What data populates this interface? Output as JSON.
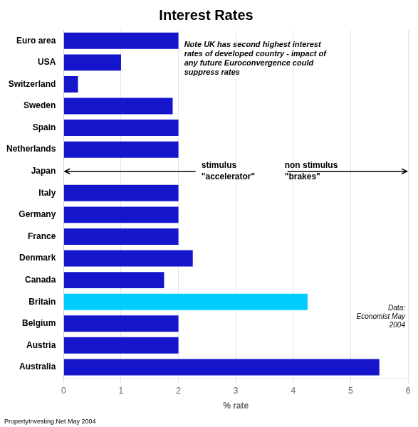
{
  "chart_data": {
    "type": "bar",
    "orientation": "horizontal",
    "title": "Interest Rates",
    "categories": [
      "Euro area",
      "USA",
      "Switzerland",
      "Sweden",
      "Spain",
      "Netherlands",
      "Japan",
      "Italy",
      "Germany",
      "France",
      "Denmark",
      "Canada",
      "Britain",
      "Belgium",
      "Austria",
      "Australia"
    ],
    "values": [
      2.0,
      1.0,
      0.25,
      1.9,
      2.0,
      2.0,
      0.001,
      2.0,
      2.0,
      2.0,
      2.25,
      1.75,
      4.25,
      2.0,
      2.0,
      5.5
    ],
    "colors": [
      "#1515cc",
      "#1515cc",
      "#1515cc",
      "#1515cc",
      "#1515cc",
      "#1515cc",
      "#f5f0d0",
      "#1515cc",
      "#1515cc",
      "#1515cc",
      "#1515cc",
      "#1515cc",
      "#00ccff",
      "#1515cc",
      "#1515cc",
      "#1515cc"
    ],
    "xlim": [
      0,
      6
    ],
    "xticks": [
      0,
      1,
      2,
      3,
      4,
      5,
      6
    ],
    "xlabel": "% rate",
    "grid": true,
    "annotations": [
      "stimulus\n\"accelerator\"",
      "non stimulus\n\"brakes\"",
      "Note UK has second highest interest\nrates of developed country - impact of\nany future Euroconvergence could\nsuppress rates",
      "Data:\nEconomist May\n2004",
      "PropertyInvesting.Net May 2004"
    ]
  }
}
